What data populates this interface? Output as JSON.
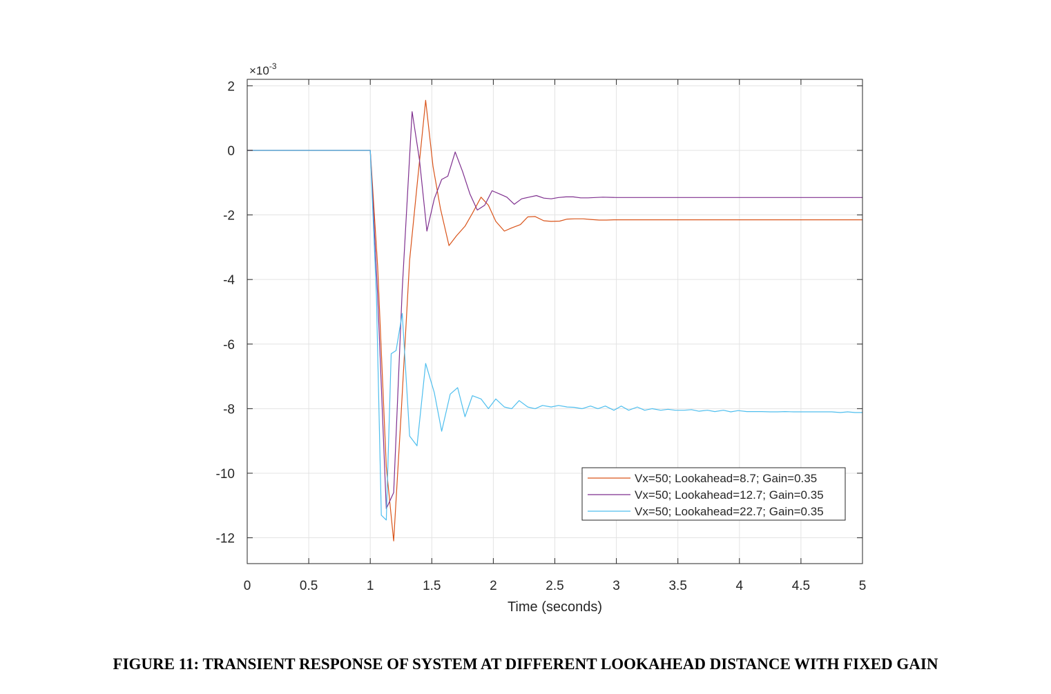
{
  "figure": {
    "caption": "FIGURE 11: TRANSIENT RESPONSE OF SYSTEM AT DIFFERENT LOOKAHEAD DISTANCE WITH FIXED GAIN"
  },
  "chart_data": {
    "type": "line",
    "title": "",
    "xlabel": "Time (seconds)",
    "ylabel": "",
    "y_exponent_label": "×10",
    "y_exponent_power": "-3",
    "xlim": [
      0,
      5
    ],
    "ylim": [
      -12.8,
      2.2
    ],
    "xticks": [
      0,
      0.5,
      1,
      1.5,
      2,
      2.5,
      3,
      3.5,
      4,
      4.5,
      5
    ],
    "xtick_labels": [
      "0",
      "0.5",
      "1",
      "1.5",
      "2",
      "2.5",
      "3",
      "3.5",
      "4",
      "4.5",
      "5"
    ],
    "yticks": [
      2,
      0,
      -2,
      -4,
      -6,
      -8,
      -10,
      -12
    ],
    "ytick_labels": [
      "2",
      "0",
      "-2",
      "-4",
      "-6",
      "-8",
      "-10",
      "-12"
    ],
    "grid": true,
    "legend_position": "bottom-right",
    "series": [
      {
        "name": "Vx=50; Lookahead=8.7; Gain=0.35",
        "color": "#D95319",
        "x": [
          0,
          1.0,
          1.06,
          1.13,
          1.19,
          1.25,
          1.32,
          1.38,
          1.45,
          1.51,
          1.57,
          1.64,
          1.7,
          1.77,
          1.83,
          1.9,
          1.96,
          2.02,
          2.09,
          2.15,
          2.22,
          2.28,
          2.34,
          2.41,
          2.47,
          2.54,
          2.6,
          2.66,
          2.73,
          2.79,
          2.86,
          2.92,
          2.98,
          3.05,
          3.11,
          3.18,
          3.3,
          3.5,
          4.0,
          4.5,
          5.0
        ],
        "y": [
          0,
          0,
          -3.6,
          -9.8,
          -12.1,
          -8.2,
          -3.4,
          -1.1,
          1.55,
          -0.5,
          -1.8,
          -2.95,
          -2.65,
          -2.35,
          -1.95,
          -1.45,
          -1.7,
          -2.2,
          -2.5,
          -2.4,
          -2.3,
          -2.06,
          -2.05,
          -2.18,
          -2.2,
          -2.19,
          -2.13,
          -2.12,
          -2.12,
          -2.14,
          -2.16,
          -2.16,
          -2.15,
          -2.15,
          -2.15,
          -2.15,
          -2.15,
          -2.15,
          -2.15,
          -2.15,
          -2.15
        ]
      },
      {
        "name": "Vx=50; Lookahead=12.7; Gain=0.35",
        "color": "#7E2F8E",
        "x": [
          0,
          1.0,
          1.06,
          1.13,
          1.19,
          1.26,
          1.34,
          1.4,
          1.46,
          1.52,
          1.58,
          1.63,
          1.69,
          1.75,
          1.81,
          1.87,
          1.93,
          1.99,
          2.05,
          2.11,
          2.17,
          2.23,
          2.29,
          2.35,
          2.41,
          2.47,
          2.53,
          2.59,
          2.65,
          2.71,
          2.77,
          2.83,
          2.89,
          3.0,
          3.2,
          3.5,
          4.0,
          4.5,
          5.0
        ],
        "y": [
          0,
          0,
          -4.5,
          -11.1,
          -10.6,
          -4.3,
          1.2,
          -0.3,
          -2.5,
          -1.5,
          -0.9,
          -0.8,
          -0.05,
          -0.65,
          -1.35,
          -1.85,
          -1.7,
          -1.25,
          -1.35,
          -1.45,
          -1.67,
          -1.5,
          -1.45,
          -1.4,
          -1.48,
          -1.5,
          -1.46,
          -1.44,
          -1.44,
          -1.47,
          -1.47,
          -1.46,
          -1.45,
          -1.46,
          -1.46,
          -1.46,
          -1.46,
          -1.46,
          -1.46
        ]
      },
      {
        "name": "Vx=50; Lookahead=22.7; Gain=0.35",
        "color": "#4DBEEE",
        "x": [
          0,
          1.0,
          1.05,
          1.09,
          1.13,
          1.17,
          1.21,
          1.26,
          1.32,
          1.38,
          1.45,
          1.52,
          1.58,
          1.65,
          1.71,
          1.77,
          1.83,
          1.9,
          1.96,
          2.02,
          2.09,
          2.15,
          2.21,
          2.28,
          2.34,
          2.4,
          2.47,
          2.53,
          2.6,
          2.66,
          2.72,
          2.79,
          2.85,
          2.91,
          2.98,
          3.04,
          3.1,
          3.17,
          3.23,
          3.29,
          3.36,
          3.42,
          3.48,
          3.55,
          3.61,
          3.67,
          3.74,
          3.8,
          3.87,
          3.93,
          3.99,
          4.06,
          4.12,
          4.18,
          4.25,
          4.31,
          4.37,
          4.44,
          4.5,
          4.56,
          4.63,
          4.69,
          4.75,
          4.82,
          4.88,
          4.94,
          5.0
        ],
        "y": [
          0,
          0,
          -4.5,
          -11.3,
          -11.45,
          -6.3,
          -6.2,
          -5.05,
          -8.85,
          -9.15,
          -6.6,
          -7.5,
          -8.7,
          -7.55,
          -7.35,
          -8.25,
          -7.6,
          -7.7,
          -8.0,
          -7.7,
          -7.95,
          -8.0,
          -7.75,
          -7.95,
          -8.0,
          -7.9,
          -7.95,
          -7.9,
          -7.95,
          -7.96,
          -8.0,
          -7.92,
          -8.0,
          -7.92,
          -8.05,
          -7.92,
          -8.05,
          -7.95,
          -8.05,
          -8.0,
          -8.05,
          -8.02,
          -8.05,
          -8.05,
          -8.03,
          -8.08,
          -8.05,
          -8.09,
          -8.05,
          -8.1,
          -8.06,
          -8.09,
          -8.09,
          -8.09,
          -8.1,
          -8.1,
          -8.09,
          -8.1,
          -8.1,
          -8.1,
          -8.1,
          -8.1,
          -8.1,
          -8.12,
          -8.1,
          -8.12,
          -8.12
        ]
      }
    ]
  }
}
